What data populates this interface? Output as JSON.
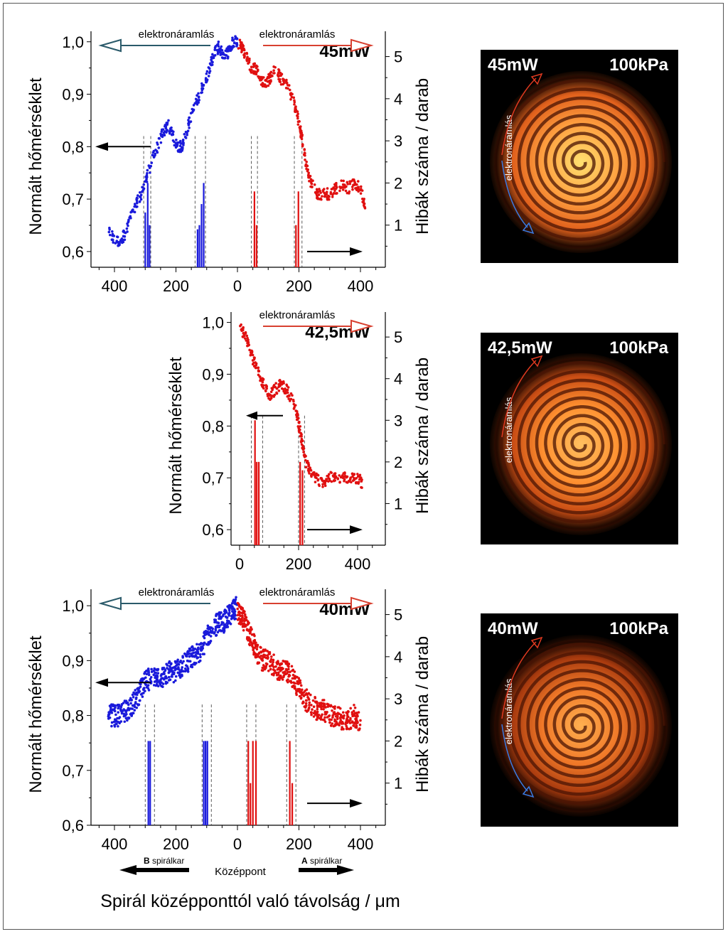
{
  "chart_data": [
    {
      "type": "scatter",
      "id": "p45",
      "power_label": "45mW",
      "ylabel_left": "Normált hőmérséklet",
      "ylabel_right": "Hibák száma / darab",
      "yticks_left": [
        "1,0",
        "0,9",
        "0,8",
        "0,7",
        "0,6"
      ],
      "yticks_right": [
        "5",
        "4",
        "3",
        "2",
        "1"
      ],
      "xticks": [
        "400",
        "200",
        "0",
        "200",
        "400"
      ],
      "xlim": [
        -500,
        500
      ],
      "ylim_left": [
        0.57,
        1.02
      ],
      "ylim_right": [
        0,
        5.6
      ],
      "flow_left_label": "elektronáramlás",
      "flow_right_label": "elektronáramlás",
      "segments_blue": [
        [
          -420,
          0.64
        ],
        [
          -400,
          0.62
        ],
        [
          -380,
          0.62
        ],
        [
          -360,
          0.64
        ],
        [
          -340,
          0.68
        ],
        [
          -320,
          0.7
        ],
        [
          -300,
          0.73
        ],
        [
          -280,
          0.77
        ],
        [
          -260,
          0.8
        ],
        [
          -240,
          0.83
        ],
        [
          -225,
          0.84
        ],
        [
          -210,
          0.82
        ],
        [
          -195,
          0.8
        ],
        [
          -180,
          0.8
        ],
        [
          -165,
          0.83
        ],
        [
          -150,
          0.86
        ],
        [
          -130,
          0.89
        ],
        [
          -110,
          0.92
        ],
        [
          -90,
          0.95
        ],
        [
          -75,
          0.98
        ],
        [
          -60,
          0.99
        ],
        [
          -45,
          0.97
        ],
        [
          -30,
          0.98
        ],
        [
          -15,
          1.0
        ],
        [
          0,
          1.0
        ]
      ],
      "segments_red": [
        [
          0,
          1.0
        ],
        [
          15,
          0.99
        ],
        [
          30,
          0.97
        ],
        [
          45,
          0.95
        ],
        [
          60,
          0.95
        ],
        [
          75,
          0.93
        ],
        [
          90,
          0.92
        ],
        [
          105,
          0.93
        ],
        [
          125,
          0.95
        ],
        [
          140,
          0.93
        ],
        [
          160,
          0.92
        ],
        [
          180,
          0.89
        ],
        [
          195,
          0.86
        ],
        [
          205,
          0.83
        ],
        [
          215,
          0.8
        ],
        [
          225,
          0.76
        ],
        [
          240,
          0.73
        ],
        [
          260,
          0.71
        ],
        [
          280,
          0.71
        ],
        [
          300,
          0.71
        ],
        [
          320,
          0.72
        ],
        [
          340,
          0.73
        ],
        [
          360,
          0.72
        ],
        [
          380,
          0.73
        ],
        [
          400,
          0.72
        ],
        [
          415,
          0.69
        ]
      ],
      "defects_blue": [
        [
          -300,
          1.3
        ],
        [
          -292,
          2.0
        ],
        [
          -286,
          1.0
        ],
        [
          -130,
          0.9
        ],
        [
          -124,
          1.0
        ],
        [
          -117,
          1.5
        ],
        [
          -110,
          2.0
        ]
      ],
      "defects_red": [
        [
          55,
          1.8
        ],
        [
          62,
          1.0
        ],
        [
          190,
          1.0
        ],
        [
          198,
          1.8
        ]
      ],
      "dash_lines": [
        -305,
        -282,
        -138,
        -104,
        45,
        65,
        185,
        210
      ],
      "arrow_y_left": 0.8,
      "arrow_y_right": 0.6
    },
    {
      "type": "scatter",
      "id": "p425",
      "power_label": "42,5mW",
      "ylabel_left": "Normált hőmérséklet",
      "ylabel_right": "Hibák száma / darab",
      "yticks_left": [
        "1,0",
        "0,9",
        "0,8",
        "0,7",
        "0,6"
      ],
      "yticks_right": [
        "5",
        "4",
        "3",
        "2",
        "1"
      ],
      "xticks": [
        "0",
        "200",
        "400"
      ],
      "xlim": [
        -10,
        500
      ],
      "ylim_left": [
        0.57,
        1.02
      ],
      "ylim_right": [
        0,
        5.6
      ],
      "flow_right_label": "elektronáramlás",
      "segments_red": [
        [
          0,
          0.99
        ],
        [
          15,
          0.98
        ],
        [
          30,
          0.96
        ],
        [
          45,
          0.93
        ],
        [
          60,
          0.91
        ],
        [
          75,
          0.89
        ],
        [
          90,
          0.87
        ],
        [
          105,
          0.86
        ],
        [
          120,
          0.87
        ],
        [
          140,
          0.88
        ],
        [
          160,
          0.87
        ],
        [
          180,
          0.85
        ],
        [
          195,
          0.82
        ],
        [
          205,
          0.79
        ],
        [
          215,
          0.76
        ],
        [
          225,
          0.73
        ],
        [
          240,
          0.71
        ],
        [
          260,
          0.7
        ],
        [
          280,
          0.69
        ],
        [
          300,
          0.7
        ],
        [
          320,
          0.7
        ],
        [
          340,
          0.7
        ],
        [
          360,
          0.7
        ],
        [
          380,
          0.7
        ],
        [
          400,
          0.7
        ],
        [
          415,
          0.69
        ]
      ],
      "defects_red": [
        [
          52,
          3.0
        ],
        [
          58,
          2.0
        ],
        [
          65,
          2.0
        ],
        [
          205,
          2.0
        ],
        [
          213,
          1.8
        ]
      ],
      "dash_lines": [
        40,
        78,
        200,
        220
      ],
      "arrow_y_left": 0.82,
      "arrow_y_right": 0.6
    },
    {
      "type": "scatter",
      "id": "p40",
      "power_label": "40mW",
      "ylabel_left": "Normált hőmérséklet",
      "ylabel_right": "Hibák száma / darab",
      "yticks_left": [
        "1,0",
        "0,9",
        "0,8",
        "0,7",
        "0,6"
      ],
      "yticks_right": [
        "5",
        "4",
        "3",
        "2",
        "1"
      ],
      "xticks": [
        "400",
        "200",
        "0",
        "200",
        "400"
      ],
      "xlim": [
        -500,
        500
      ],
      "ylim_left": [
        0.6,
        1.03
      ],
      "ylim_right": [
        0,
        5.6
      ],
      "flow_left_label": "elektronáramlás",
      "flow_right_label": "elektronáramlás",
      "segments_blue": [
        [
          -420,
          0.8
        ],
        [
          -400,
          0.8
        ],
        [
          -380,
          0.8
        ],
        [
          -360,
          0.81
        ],
        [
          -340,
          0.82
        ],
        [
          -320,
          0.84
        ],
        [
          -300,
          0.86
        ],
        [
          -280,
          0.87
        ],
        [
          -260,
          0.87
        ],
        [
          -240,
          0.87
        ],
        [
          -220,
          0.88
        ],
        [
          -200,
          0.88
        ],
        [
          -180,
          0.89
        ],
        [
          -160,
          0.9
        ],
        [
          -140,
          0.91
        ],
        [
          -120,
          0.92
        ],
        [
          -100,
          0.94
        ],
        [
          -80,
          0.96
        ],
        [
          -60,
          0.97
        ],
        [
          -45,
          0.97
        ],
        [
          -30,
          0.98
        ],
        [
          -15,
          0.99
        ],
        [
          0,
          1.0
        ]
      ],
      "segments_red": [
        [
          0,
          0.99
        ],
        [
          15,
          0.98
        ],
        [
          30,
          0.96
        ],
        [
          45,
          0.94
        ],
        [
          60,
          0.92
        ],
        [
          80,
          0.9
        ],
        [
          100,
          0.9
        ],
        [
          120,
          0.89
        ],
        [
          140,
          0.88
        ],
        [
          160,
          0.88
        ],
        [
          180,
          0.87
        ],
        [
          200,
          0.85
        ],
        [
          220,
          0.83
        ],
        [
          240,
          0.82
        ],
        [
          260,
          0.81
        ],
        [
          280,
          0.81
        ],
        [
          300,
          0.8
        ],
        [
          320,
          0.8
        ],
        [
          340,
          0.79
        ],
        [
          360,
          0.79
        ],
        [
          380,
          0.8
        ],
        [
          400,
          0.79
        ]
      ],
      "defects_blue": [
        [
          -290,
          2.0
        ],
        [
          -284,
          2.0
        ],
        [
          -110,
          2.0
        ],
        [
          -104,
          2.0
        ],
        [
          -98,
          2.0
        ]
      ],
      "defects_red": [
        [
          35,
          2.0
        ],
        [
          42,
          1.0
        ],
        [
          50,
          2.0
        ],
        [
          60,
          2.0
        ],
        [
          170,
          2.0
        ],
        [
          178,
          1.0
        ]
      ],
      "dash_lines": [
        -300,
        -270,
        -115,
        -85,
        30,
        60,
        160,
        190
      ],
      "arrow_y_left": 0.86,
      "arrow_y_right": 0.64
    }
  ],
  "photos": [
    {
      "power": "45mW",
      "pressure": "100kPa",
      "flow_label": "elektronáramlás",
      "blue_arrow": true
    },
    {
      "power": "42,5mW",
      "pressure": "100kPa",
      "flow_label": "elektronáramlás",
      "blue_arrow": false
    },
    {
      "power": "40mW",
      "pressure": "100kPa",
      "flow_label": "elektronáramlás",
      "blue_arrow": true
    }
  ],
  "footer": {
    "b_bold": "B",
    "b_text": " spirálkar",
    "center": "Középpont",
    "a_bold": "A",
    "a_text": " spirálkar",
    "xlabel": "Spirál középponttól való távolság / μm"
  },
  "colors": {
    "blue": "#1a1adb",
    "red": "#e01010",
    "arrow_teal": "#2a5a6a",
    "arrow_red": "#d84030"
  }
}
